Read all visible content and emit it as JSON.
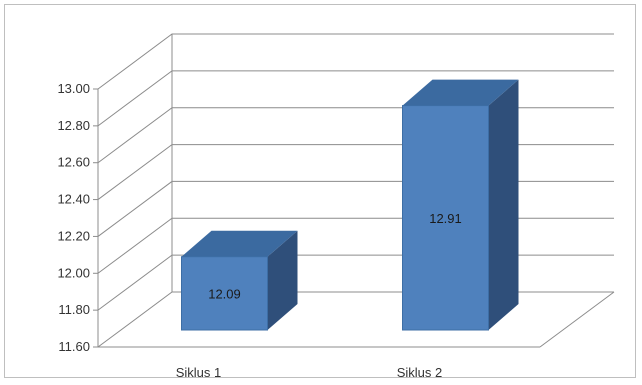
{
  "chart_data": {
    "type": "bar",
    "categories": [
      "Siklus 1",
      "Siklus 2"
    ],
    "values": [
      12.09,
      12.91
    ],
    "data_labels": [
      "12.09",
      "12.91"
    ],
    "ylim": [
      11.6,
      13.0
    ],
    "yticks": [
      "11.60",
      "11.80",
      "12.00",
      "12.20",
      "12.40",
      "12.60",
      "12.80",
      "13.00"
    ],
    "grid": true,
    "legend": "none",
    "style": "3d-column",
    "colors": {
      "bar_front": "#4f81bd",
      "bar_side": "#2f4f7a",
      "bar_top": "#3b6aa0",
      "grid": "#8c8c8c"
    }
  }
}
